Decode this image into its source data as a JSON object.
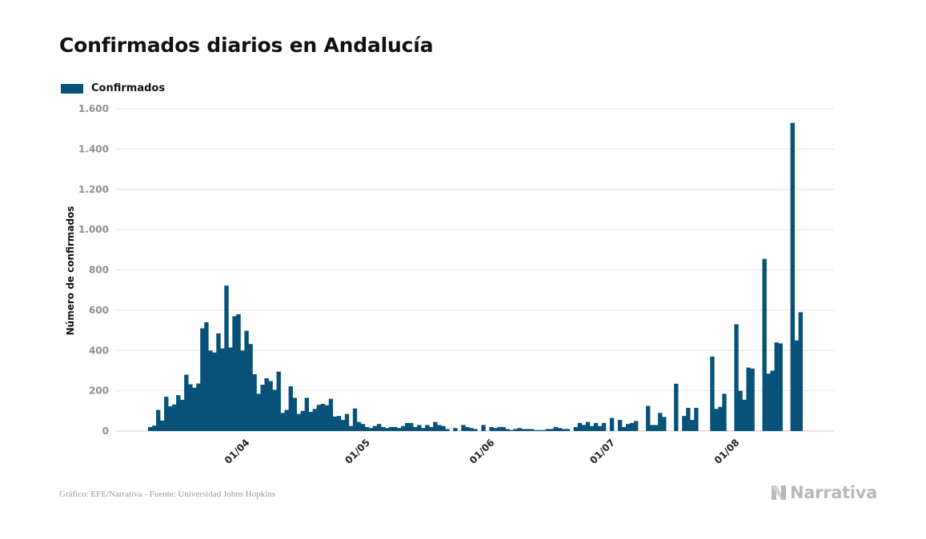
{
  "header": {
    "title": "Confirmados diarios en Andalucía"
  },
  "footer": {
    "source": "Gráfico: EFE/Narrativa - Fuente: Universidad Johns Hopkins",
    "logo_text": "Narrativa"
  },
  "colors": {
    "bar": "#08527a",
    "grid": "#e6e6e6",
    "logo": "#b9b9b9"
  },
  "icons": {
    "logo": "narrativa-logo-icon"
  },
  "chart_data": {
    "type": "bar",
    "title": "Confirmados diarios en Andalucía",
    "xlabel": "",
    "ylabel": "Número de confirmados",
    "ylim": [
      0,
      1600
    ],
    "yticks": [
      0,
      200,
      400,
      600,
      800,
      1000,
      1200,
      1400,
      1600
    ],
    "ytick_labels": [
      "0",
      "200",
      "400",
      "600",
      "800",
      "1.000",
      "1.200",
      "1.400",
      "1.600"
    ],
    "xticks": [
      {
        "label": "01/04",
        "date": "2020-04-01"
      },
      {
        "label": "01/05",
        "date": "2020-05-01"
      },
      {
        "label": "01/06",
        "date": "2020-06-01"
      },
      {
        "label": "01/07",
        "date": "2020-07-01"
      },
      {
        "label": "01/08",
        "date": "2020-08-01"
      }
    ],
    "grid": true,
    "legend_position": "top-left",
    "start_date": "2020-03-09",
    "series": [
      {
        "name": "Confirmados",
        "values": [
          20,
          27,
          105,
          52,
          170,
          123,
          132,
          178,
          155,
          280,
          232,
          215,
          236,
          510,
          540,
          400,
          390,
          485,
          410,
          722,
          415,
          570,
          580,
          400,
          498,
          432,
          282,
          185,
          230,
          262,
          248,
          205,
          295,
          90,
          105,
          222,
          165,
          85,
          100,
          165,
          95,
          110,
          130,
          135,
          128,
          160,
          72,
          75,
          55,
          85,
          25,
          112,
          45,
          35,
          20,
          15,
          25,
          35,
          20,
          15,
          20,
          20,
          15,
          25,
          40,
          40,
          20,
          30,
          15,
          30,
          20,
          45,
          30,
          25,
          10,
          0,
          15,
          0,
          30,
          20,
          15,
          10,
          0,
          30,
          0,
          20,
          15,
          20,
          20,
          10,
          5,
          10,
          15,
          10,
          10,
          10,
          5,
          5,
          5,
          10,
          10,
          20,
          15,
          10,
          10,
          0,
          20,
          40,
          30,
          45,
          25,
          40,
          25,
          40,
          0,
          65,
          0,
          55,
          20,
          35,
          40,
          50,
          0,
          0,
          125,
          30,
          30,
          90,
          70,
          0,
          0,
          235,
          0,
          75,
          115,
          55,
          115,
          0,
          0,
          0,
          370,
          110,
          120,
          185,
          0,
          0,
          530,
          200,
          155,
          315,
          310,
          0,
          0,
          855,
          285,
          300,
          440,
          435,
          0,
          0,
          1530,
          450,
          590
        ]
      }
    ]
  }
}
